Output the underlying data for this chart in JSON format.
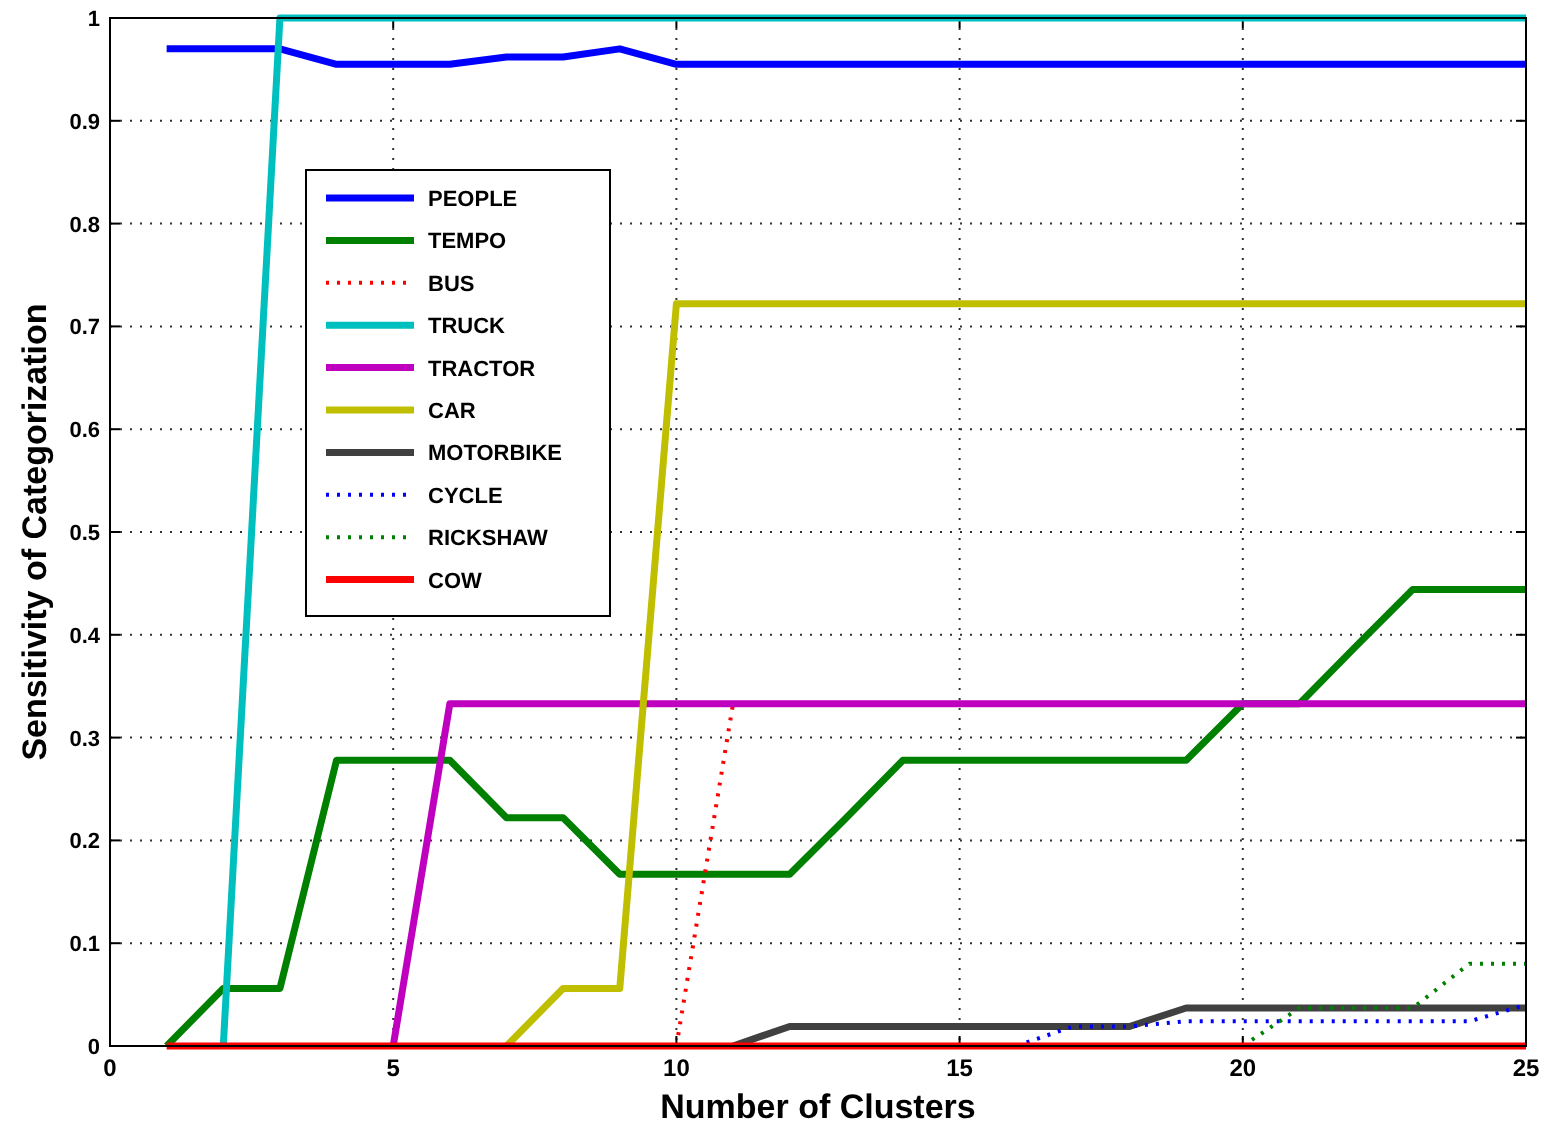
{
  "chart_data": {
    "type": "line",
    "xlabel": "Number of Clusters",
    "ylabel": "Sensitivity of Categorization",
    "x": [
      1,
      2,
      3,
      4,
      5,
      6,
      7,
      8,
      9,
      10,
      11,
      12,
      13,
      14,
      15,
      16,
      17,
      18,
      19,
      20,
      21,
      22,
      23,
      24,
      25
    ],
    "series": [
      {
        "name": "PEOPLE",
        "color": "#0000ff",
        "line_style": "solid",
        "values": [
          0.97,
          0.97,
          0.97,
          0.955,
          0.955,
          0.955,
          0.962,
          0.962,
          0.97,
          0.955,
          0.955,
          0.955,
          0.955,
          0.955,
          0.955,
          0.955,
          0.955,
          0.955,
          0.955,
          0.955,
          0.955,
          0.955,
          0.955,
          0.955,
          0.955
        ]
      },
      {
        "name": "TEMPO",
        "color": "#008000",
        "line_style": "solid",
        "values": [
          0,
          0.056,
          0.056,
          0.278,
          0.278,
          0.278,
          0.222,
          0.222,
          0.167,
          0.167,
          0.167,
          0.167,
          0.222,
          0.278,
          0.278,
          0.278,
          0.278,
          0.278,
          0.278,
          0.333,
          0.333,
          0.389,
          0.444,
          0.444,
          0.444
        ]
      },
      {
        "name": "BUS",
        "color": "#ff0000",
        "line_style": "dotted",
        "values": [
          null,
          null,
          null,
          null,
          null,
          null,
          null,
          null,
          null,
          0,
          0.333,
          null,
          null,
          null,
          null,
          null,
          null,
          null,
          null,
          null,
          null,
          null,
          null,
          null,
          null
        ]
      },
      {
        "name": "TRUCK",
        "color": "#00bfbf",
        "line_style": "solid",
        "values": [
          null,
          0,
          1,
          1,
          1,
          1,
          1,
          1,
          1,
          1,
          1,
          1,
          1,
          1,
          1,
          1,
          1,
          1,
          1,
          1,
          1,
          1,
          1,
          1,
          1
        ]
      },
      {
        "name": "TRACTOR",
        "color": "#bf00bf",
        "line_style": "solid",
        "values": [
          null,
          null,
          null,
          null,
          0,
          0.333,
          0.333,
          0.333,
          0.333,
          0.333,
          0.333,
          0.333,
          0.333,
          0.333,
          0.333,
          0.333,
          0.333,
          0.333,
          0.333,
          0.333,
          0.333,
          0.333,
          0.333,
          0.333,
          0.333
        ]
      },
      {
        "name": "CAR",
        "color": "#bfbf00",
        "line_style": "solid",
        "values": [
          null,
          null,
          null,
          null,
          null,
          null,
          0,
          0.056,
          0.056,
          0.722,
          0.722,
          0.722,
          0.722,
          0.722,
          0.722,
          0.722,
          0.722,
          0.722,
          0.722,
          0.722,
          0.722,
          0.722,
          0.722,
          0.722,
          0.722
        ]
      },
      {
        "name": "MOTORBIKE",
        "color": "#404040",
        "line_style": "solid",
        "values": [
          null,
          null,
          null,
          null,
          null,
          null,
          null,
          null,
          null,
          null,
          0,
          0.019,
          0.019,
          0.019,
          0.019,
          0.019,
          0.019,
          0.019,
          0.037,
          0.037,
          0.037,
          0.037,
          0.037,
          0.037,
          0.037
        ]
      },
      {
        "name": "CYCLE",
        "color": "#0000ff",
        "line_style": "dotted",
        "values": [
          null,
          null,
          null,
          null,
          null,
          null,
          null,
          null,
          null,
          null,
          null,
          null,
          null,
          null,
          null,
          0,
          0.019,
          0.019,
          0.024,
          0.024,
          0.024,
          0.024,
          0.024,
          0.024,
          0.04
        ]
      },
      {
        "name": "RICKSHAW",
        "color": "#008000",
        "line_style": "dotted",
        "values": [
          null,
          null,
          null,
          null,
          null,
          null,
          null,
          null,
          null,
          null,
          null,
          null,
          null,
          null,
          null,
          null,
          null,
          null,
          null,
          0,
          0.037,
          0.037,
          0.037,
          0.08,
          0.08
        ]
      },
      {
        "name": "COW",
        "color": "#ff0000",
        "line_style": "solid",
        "values": [
          0,
          0,
          0,
          0,
          0,
          0,
          0,
          0,
          0,
          0,
          0,
          0,
          0,
          0,
          0,
          0,
          0,
          0,
          0,
          0,
          0,
          0,
          0,
          0,
          0
        ]
      }
    ],
    "xlim": [
      0,
      25
    ],
    "xticks": [
      0,
      5,
      10,
      15,
      20,
      25
    ],
    "ylim": [
      0,
      1
    ],
    "yticks": [
      0,
      0.1,
      0.2,
      0.3,
      0.4,
      0.5,
      0.6,
      0.7,
      0.8,
      0.9,
      1
    ],
    "grid": true,
    "legend": "top left"
  }
}
